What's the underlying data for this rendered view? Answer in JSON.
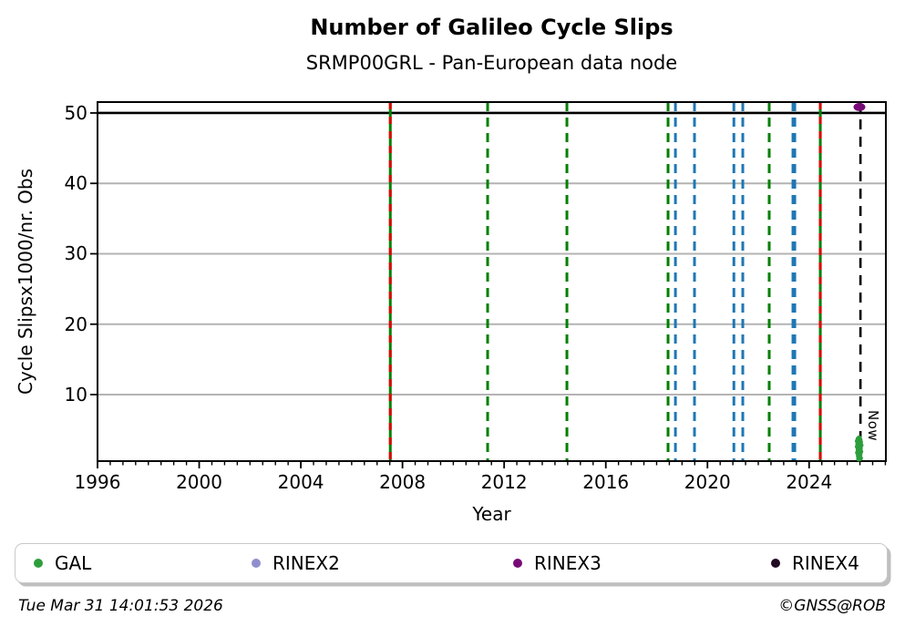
{
  "header": {
    "title": "Number of Galileo Cycle Slips",
    "subtitle": "SRMP00GRL - Pan-European data node"
  },
  "footer": {
    "timestamp": "Tue Mar 31 14:01:53 2026",
    "copyright": "©GNSS@ROB"
  },
  "legend": {
    "items": [
      {
        "label": "GAL",
        "color": "#2e9e3d"
      },
      {
        "label": "RINEX2",
        "color": "#8f8fd0"
      },
      {
        "label": "RINEX3",
        "color": "#780a78"
      },
      {
        "label": "RINEX4",
        "color": "#220a22"
      }
    ]
  },
  "chart_data": {
    "type": "scatter",
    "title": "Number of Galileo Cycle Slips",
    "subtitle": "SRMP00GRL - Pan-European data node",
    "xlabel": "Year",
    "ylabel": "Cycle Slipsx1000/nr. Obs",
    "xlim": [
      1996,
      2027.02
    ],
    "ylim": [
      0.55,
      51.55
    ],
    "xticks_major": [
      1996,
      2000,
      2004,
      2008,
      2012,
      2016,
      2020,
      2024
    ],
    "xtick_minor_step": 0.5,
    "yticks": [
      10,
      20,
      30,
      40,
      50
    ],
    "grid": "horizontal",
    "grid_color": "#b3b3b3",
    "hline": {
      "y": 50,
      "color": "#000000",
      "width": 2.6
    },
    "event_lines": [
      {
        "year": 2007.52,
        "color": "#008000",
        "dash": "solid",
        "width": 3
      },
      {
        "year": 2007.52,
        "color": "#dc0000",
        "dash": "dashed-red",
        "width": 3
      },
      {
        "year": 2011.35,
        "color": "#008000",
        "dash": "dashed",
        "width": 3
      },
      {
        "year": 2014.47,
        "color": "#008000",
        "dash": "dashed",
        "width": 3
      },
      {
        "year": 2018.45,
        "color": "#008000",
        "dash": "dashed",
        "width": 3
      },
      {
        "year": 2018.74,
        "color": "#1f77b4",
        "dash": "dashed",
        "width": 3
      },
      {
        "year": 2019.49,
        "color": "#1f77b4",
        "dash": "dashed",
        "width": 3
      },
      {
        "year": 2021.04,
        "color": "#1f77b4",
        "dash": "dashed",
        "width": 3
      },
      {
        "year": 2021.39,
        "color": "#1f77b4",
        "dash": "dashed",
        "width": 3
      },
      {
        "year": 2022.43,
        "color": "#008000",
        "dash": "dashed",
        "width": 3
      },
      {
        "year": 2023.4,
        "color": "#1f77b4",
        "dash": "dashed",
        "width": 5
      },
      {
        "year": 2024.44,
        "color": "#008000",
        "dash": "solid",
        "width": 3
      },
      {
        "year": 2024.44,
        "color": "#dc0000",
        "dash": "dashed-red",
        "width": 3
      }
    ],
    "now_line": {
      "year": 2026.02,
      "label": "Now",
      "color": "#000000"
    },
    "series": [
      {
        "name": "GAL",
        "color": "#2e9e3d",
        "points": [
          [
            2025.93,
            3.7
          ],
          [
            2025.97,
            3.85
          ],
          [
            2026.0,
            3.6
          ],
          [
            2025.9,
            3.4
          ],
          [
            2025.95,
            3.3
          ],
          [
            2026.02,
            3.25
          ],
          [
            2025.92,
            3.0
          ],
          [
            2025.98,
            2.95
          ],
          [
            2026.04,
            2.8
          ],
          [
            2025.9,
            2.6
          ],
          [
            2025.96,
            2.5
          ],
          [
            2026.01,
            2.35
          ],
          [
            2025.93,
            2.2
          ],
          [
            2025.99,
            2.05
          ],
          [
            2026.03,
            1.9
          ],
          [
            2025.91,
            1.75
          ],
          [
            2025.97,
            1.6
          ],
          [
            2026.0,
            1.45
          ],
          [
            2025.94,
            1.3
          ],
          [
            2025.98,
            1.1
          ],
          [
            2026.02,
            0.95
          ],
          [
            2025.95,
            0.85
          ]
        ]
      },
      {
        "name": "RINEX2",
        "color": "#8f8fd0",
        "points": []
      },
      {
        "name": "RINEX3",
        "color": "#780a78",
        "points": [
          [
            2025.98,
            50.85
          ]
        ]
      },
      {
        "name": "RINEX4",
        "color": "#220a22",
        "points": []
      }
    ]
  }
}
